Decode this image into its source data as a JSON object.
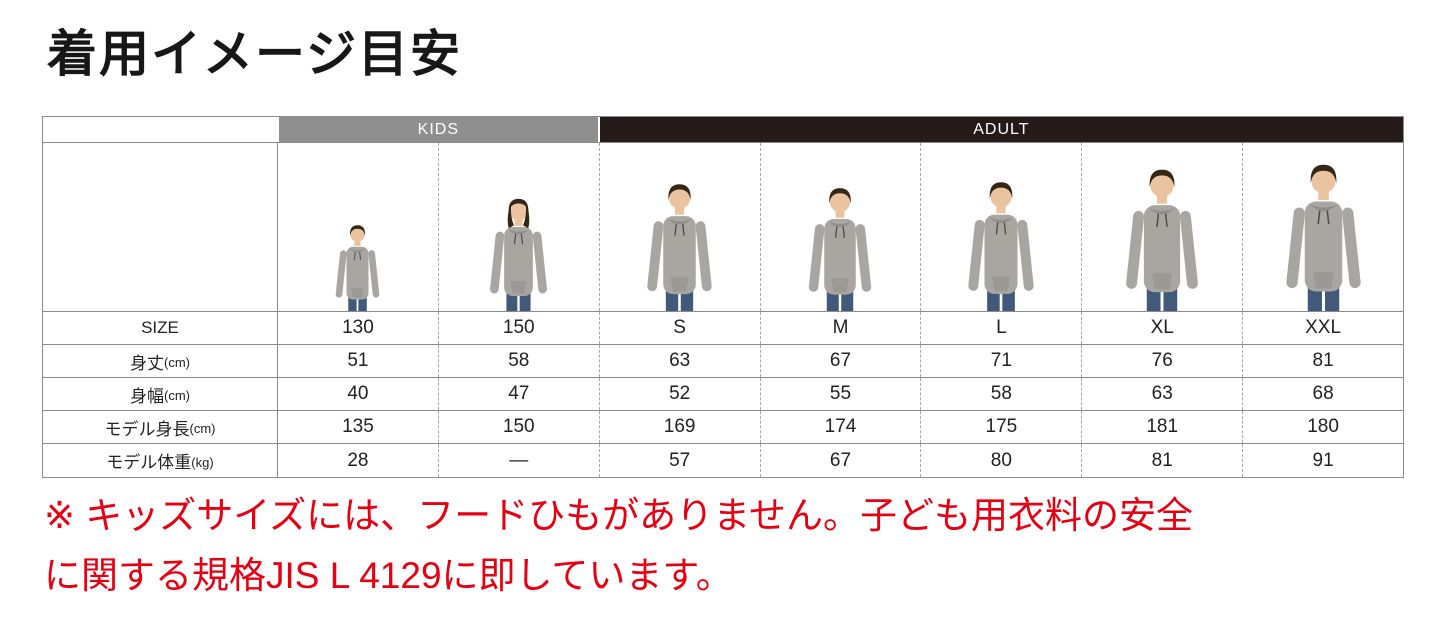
{
  "page": {
    "title": "着用イメージ目安",
    "background": "#ffffff"
  },
  "table": {
    "groups": [
      {
        "label": "KIDS",
        "color": "#8f8f8f",
        "span": 2
      },
      {
        "label": "ADULT",
        "color": "#241b18",
        "span": 5
      }
    ],
    "columns": [
      {
        "size": "130",
        "group": "KIDS",
        "figure": "child-boy",
        "figure_height": 88
      },
      {
        "size": "150",
        "group": "KIDS",
        "figure": "child-girl",
        "figure_height": 115
      },
      {
        "size": "S",
        "group": "ADULT",
        "figure": "adult-man",
        "figure_height": 130
      },
      {
        "size": "M",
        "group": "ADULT",
        "figure": "adult-man",
        "figure_height": 126
      },
      {
        "size": "L",
        "group": "ADULT",
        "figure": "adult-man",
        "figure_height": 132
      },
      {
        "size": "XL",
        "group": "ADULT",
        "figure": "adult-man",
        "figure_height": 145
      },
      {
        "size": "XXL",
        "group": "ADULT",
        "figure": "adult-man",
        "figure_height": 150
      }
    ],
    "rows": [
      {
        "label": "SIZE",
        "unit": "",
        "values": [
          "130",
          "150",
          "S",
          "M",
          "L",
          "XL",
          "XXL"
        ]
      },
      {
        "label": "身丈",
        "unit": "(cm)",
        "values": [
          "51",
          "58",
          "63",
          "67",
          "71",
          "76",
          "81"
        ]
      },
      {
        "label": "身幅",
        "unit": "(cm)",
        "values": [
          "40",
          "47",
          "52",
          "55",
          "58",
          "63",
          "68"
        ]
      },
      {
        "label": "モデル身長",
        "unit": "(cm)",
        "values": [
          "135",
          "150",
          "169",
          "174",
          "175",
          "181",
          "180"
        ]
      },
      {
        "label": "モデル体重",
        "unit": "(kg)",
        "values": [
          "28",
          "—",
          "57",
          "67",
          "80",
          "81",
          "91"
        ]
      }
    ],
    "grid": {
      "solid_line_color": "#8a8a8a",
      "dashed_line_color": "#a8a8a8"
    }
  },
  "figure_colors": {
    "hoodie": "#a9a6a2",
    "hoodie_shade": "#918e8a",
    "jeans": "#41597a",
    "skin": "#eac49e",
    "hair": "#352617",
    "drawstring": "#4a4a4a"
  },
  "footnote": {
    "color": "#e60012",
    "lines": [
      "※ キッズサイズには、フードひもがありません。子ども用衣料の安全",
      "に関する規格JIS L 4129に即しています。"
    ]
  }
}
